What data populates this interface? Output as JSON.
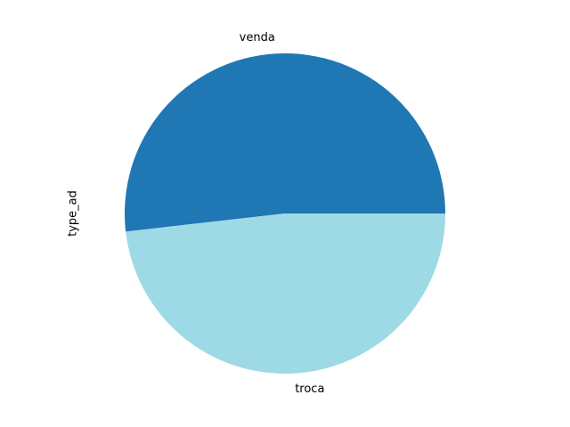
{
  "chart_data": {
    "type": "pie",
    "ylabel": "type_ad",
    "start_angle_deg": 0,
    "direction": "counterclockwise",
    "slices": [
      {
        "label": "venda",
        "value": 51.8,
        "color": "#1f77b4"
      },
      {
        "label": "troca",
        "value": 48.2,
        "color": "#9edae5"
      }
    ]
  }
}
